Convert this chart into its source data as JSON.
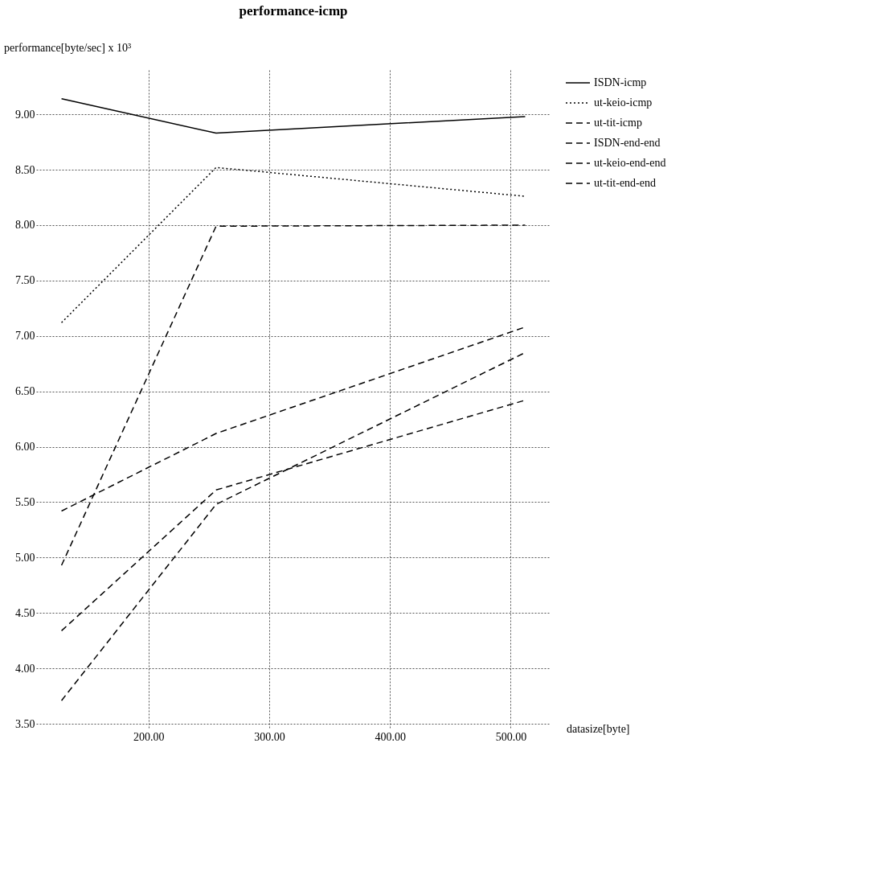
{
  "chart_data": {
    "type": "line",
    "title": "performance-icmp",
    "xlabel": "datasize[byte]",
    "ylabel": "performance[byte/sec] x 10³",
    "x": [
      128,
      256,
      512
    ],
    "series": [
      {
        "name": "ISDN-icmp",
        "color": "#000000",
        "line_style": "solid",
        "values": [
          9.14,
          8.83,
          8.98
        ]
      },
      {
        "name": "ut-keio-icmp",
        "color": "#000000",
        "line_style": "dotted",
        "values": [
          7.12,
          8.52,
          8.26
        ]
      },
      {
        "name": "ut-tit-icmp",
        "color": "#000000",
        "line_style": "dashed",
        "values": [
          4.93,
          7.99,
          8.0
        ]
      },
      {
        "name": "ISDN-end-end",
        "color": "#000000",
        "line_style": "dashed",
        "values": [
          5.42,
          6.12,
          7.08
        ]
      },
      {
        "name": "ut-keio-end-end",
        "color": "#000000",
        "line_style": "dashed",
        "values": [
          4.34,
          5.61,
          6.42
        ]
      },
      {
        "name": "ut-tit-end-end",
        "color": "#000000",
        "line_style": "dashed",
        "values": [
          3.71,
          5.48,
          6.85
        ]
      }
    ],
    "xlim": [
      107,
      533
    ],
    "ylim": [
      3.45,
      9.4
    ],
    "xticks": [
      {
        "value": 200,
        "label": "200.00"
      },
      {
        "value": 300,
        "label": "300.00"
      },
      {
        "value": 400,
        "label": "400.00"
      },
      {
        "value": 500,
        "label": "500.00"
      }
    ],
    "yticks": [
      {
        "value": 3.5,
        "label": "3.50"
      },
      {
        "value": 4,
        "label": "4.00"
      },
      {
        "value": 4.5,
        "label": "4.50"
      },
      {
        "value": 5,
        "label": "5.00"
      },
      {
        "value": 5.5,
        "label": "5.50"
      },
      {
        "value": 6,
        "label": "6.00"
      },
      {
        "value": 6.5,
        "label": "6.50"
      },
      {
        "value": 7,
        "label": "7.00"
      },
      {
        "value": 7.5,
        "label": "7.50"
      },
      {
        "value": 8,
        "label": "8.00"
      },
      {
        "value": 8.5,
        "label": "8.50"
      },
      {
        "value": 9,
        "label": "9.00"
      }
    ],
    "grid": true,
    "legend": "top right",
    "marker": "none"
  }
}
